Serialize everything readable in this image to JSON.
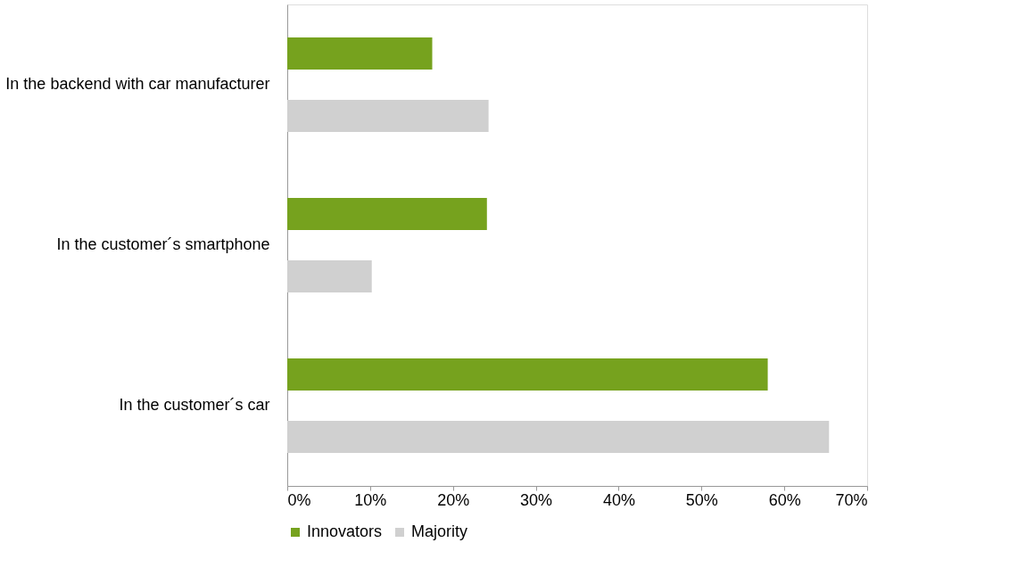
{
  "chart_data": {
    "type": "bar",
    "orientation": "horizontal",
    "categories": [
      "In the backend with car manufacturer",
      "In the customer´s smartphone",
      "In the customer´s car"
    ],
    "series": [
      {
        "name": "Innovators",
        "color": "#76a21e",
        "values": [
          17.5,
          24.1,
          58.0
        ]
      },
      {
        "name": "Majority",
        "color": "#d0d0d0",
        "values": [
          24.3,
          10.2,
          65.4
        ]
      }
    ],
    "xlim": [
      0,
      70
    ],
    "xticks": [
      {
        "value": 0,
        "label": "0%"
      },
      {
        "value": 10,
        "label": "10%"
      },
      {
        "value": 20,
        "label": "20%"
      },
      {
        "value": 30,
        "label": "30%"
      },
      {
        "value": 40,
        "label": "40%"
      },
      {
        "value": 50,
        "label": "50%"
      },
      {
        "value": 60,
        "label": "60%"
      },
      {
        "value": 70,
        "label": "70%"
      }
    ],
    "grid": false,
    "legend": "bottom"
  }
}
